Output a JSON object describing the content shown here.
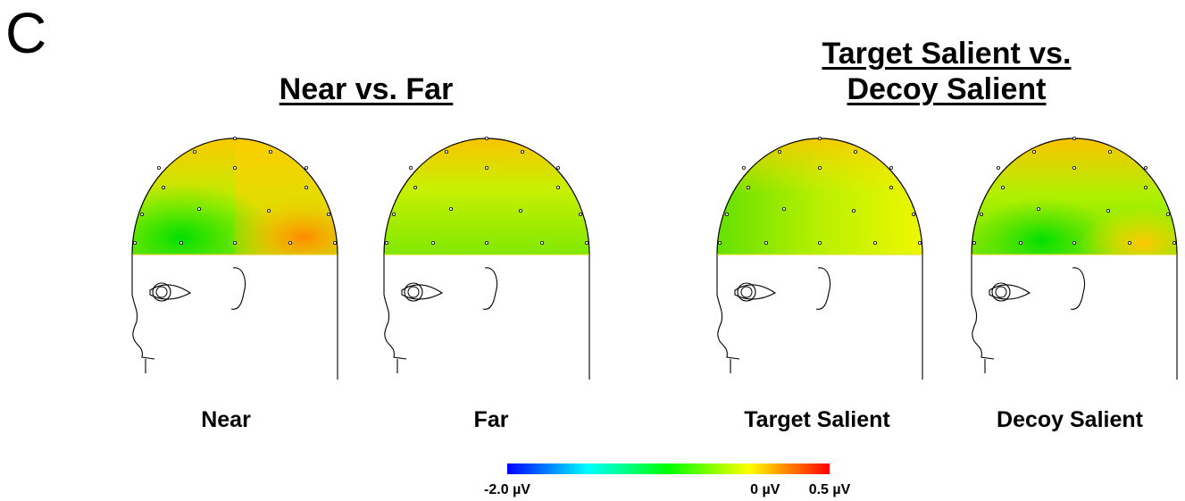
{
  "panel_letter": "C",
  "groups": [
    {
      "title_lines": [
        "Near vs. Far"
      ]
    },
    {
      "title_lines": [
        "Target Salient vs.",
        "Decoy Salient"
      ]
    }
  ],
  "maps": [
    {
      "label": "Near"
    },
    {
      "label": "Far"
    },
    {
      "label": "Target Salient"
    },
    {
      "label": "Decoy Salient"
    }
  ],
  "colorbar": {
    "colors": [
      "#0000ff",
      "#00ffff",
      "#00ff00",
      "#ffff00",
      "#ff0000"
    ],
    "ticks": [
      {
        "label": "-2.0 µV",
        "value": -2.0
      },
      {
        "label": "0 µV",
        "value": 0
      },
      {
        "label": "0.5 µV",
        "value": 0.5
      }
    ]
  }
}
